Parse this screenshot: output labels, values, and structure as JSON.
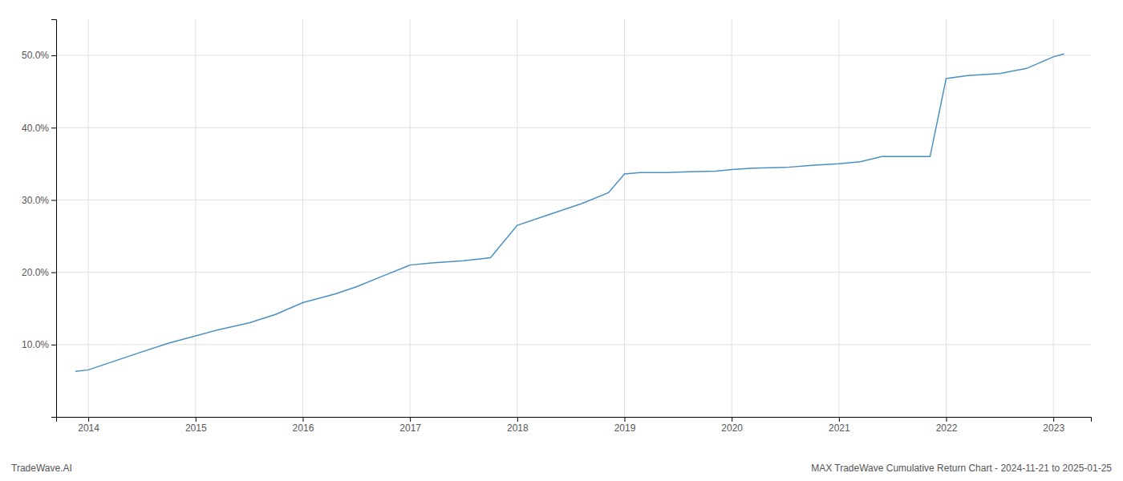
{
  "chart_data": {
    "type": "line",
    "x": [
      2013.88,
      2014.0,
      2014.2,
      2014.5,
      2014.75,
      2015.0,
      2015.2,
      2015.5,
      2015.75,
      2016.0,
      2016.3,
      2016.5,
      2016.75,
      2017.0,
      2017.2,
      2017.5,
      2017.75,
      2018.0,
      2018.3,
      2018.6,
      2018.85,
      2019.0,
      2019.15,
      2019.4,
      2019.6,
      2019.85,
      2020.0,
      2020.2,
      2020.5,
      2020.75,
      2021.0,
      2021.2,
      2021.4,
      2021.6,
      2021.85,
      2022.0,
      2022.2,
      2022.5,
      2022.75,
      2023.0,
      2023.1
    ],
    "values": [
      6.3,
      6.5,
      7.5,
      9.0,
      10.2,
      11.2,
      12.0,
      13.0,
      14.2,
      15.8,
      17.0,
      18.0,
      19.5,
      21.0,
      21.3,
      21.6,
      22.0,
      26.5,
      28.0,
      29.5,
      31.0,
      33.6,
      33.8,
      33.8,
      33.9,
      34.0,
      34.2,
      34.4,
      34.5,
      34.8,
      35.0,
      35.3,
      36.0,
      36.0,
      36.0,
      46.8,
      47.2,
      47.5,
      48.2,
      49.8,
      50.2
    ],
    "color": "#4a90c4",
    "xlim": [
      2013.7,
      2023.35
    ],
    "xticks": [
      2014,
      2015,
      2016,
      2017,
      2018,
      2019,
      2020,
      2021,
      2022,
      2023
    ],
    "ylim": [
      0,
      55
    ],
    "yticks": [
      {
        "value": 10.0,
        "label": "10.0%"
      },
      {
        "value": 20.0,
        "label": "20.0%"
      },
      {
        "value": 30.0,
        "label": "30.0%"
      },
      {
        "value": 40.0,
        "label": "40.0%"
      },
      {
        "value": 50.0,
        "label": "50.0%"
      }
    ],
    "grid": true,
    "annotations": [
      "TradeWave.AI",
      "MAX TradeWave Cumulative Return Chart - 2024-11-21 to 2025-01-25"
    ]
  }
}
